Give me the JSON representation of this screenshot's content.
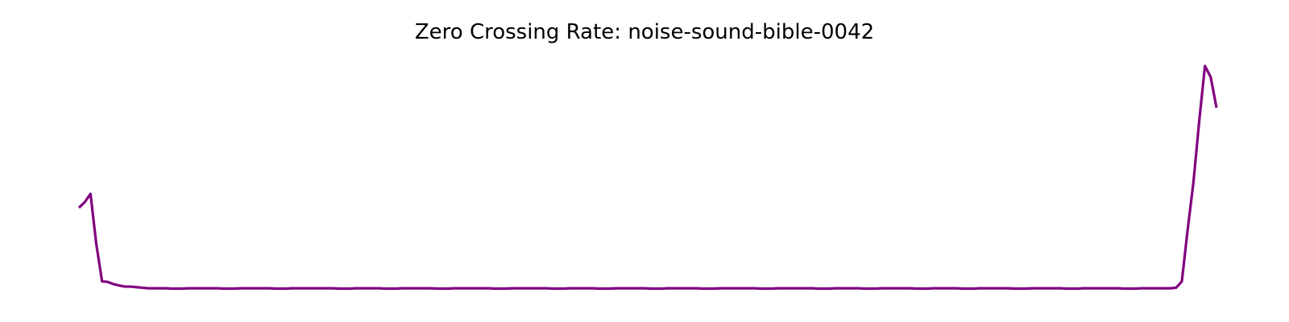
{
  "chart_data": {
    "type": "line",
    "title": "Zero Crossing Rate: noise-sound-bible-0042",
    "xlabel": "",
    "ylabel": "",
    "axes_visible": false,
    "grid": false,
    "line_color": "#800080",
    "series": [
      {
        "values": [
          0.33,
          0.35,
          0.38,
          0.2,
          0.065,
          0.063,
          0.055,
          0.05,
          0.046,
          0.046,
          0.044,
          0.042,
          0.04,
          0.04,
          0.04,
          0.04,
          0.039,
          0.039,
          0.039,
          0.04,
          0.04,
          0.04,
          0.04,
          0.04,
          0.04,
          0.039,
          0.039,
          0.039,
          0.04,
          0.04,
          0.04,
          0.04,
          0.04,
          0.04,
          0.039,
          0.039,
          0.039,
          0.04,
          0.04,
          0.04,
          0.04,
          0.04,
          0.04,
          0.04,
          0.04,
          0.039,
          0.039,
          0.039,
          0.04,
          0.04,
          0.04,
          0.04,
          0.04,
          0.039,
          0.039,
          0.039,
          0.04,
          0.04,
          0.04,
          0.04,
          0.04,
          0.04,
          0.039,
          0.039,
          0.039,
          0.04,
          0.04,
          0.04,
          0.04,
          0.04,
          0.04,
          0.04,
          0.039,
          0.039,
          0.039,
          0.04,
          0.04,
          0.04,
          0.04,
          0.04,
          0.04,
          0.04,
          0.039,
          0.039,
          0.039,
          0.04,
          0.04,
          0.04,
          0.04,
          0.04,
          0.039,
          0.039,
          0.039,
          0.04,
          0.04,
          0.04,
          0.04,
          0.04,
          0.04,
          0.039,
          0.039,
          0.039,
          0.04,
          0.04,
          0.04,
          0.04,
          0.04,
          0.04,
          0.039,
          0.039,
          0.039,
          0.04,
          0.04,
          0.04,
          0.04,
          0.04,
          0.04,
          0.04,
          0.039,
          0.039,
          0.039,
          0.04,
          0.04,
          0.04,
          0.04,
          0.04,
          0.04,
          0.04,
          0.039,
          0.039,
          0.039,
          0.04,
          0.04,
          0.04,
          0.04,
          0.04,
          0.039,
          0.039,
          0.039,
          0.04,
          0.04,
          0.04,
          0.04,
          0.04,
          0.04,
          0.039,
          0.039,
          0.039,
          0.04,
          0.04,
          0.04,
          0.04,
          0.04,
          0.039,
          0.039,
          0.039,
          0.04,
          0.04,
          0.04,
          0.04,
          0.04,
          0.04,
          0.039,
          0.039,
          0.039,
          0.04,
          0.04,
          0.04,
          0.04,
          0.04,
          0.04,
          0.039,
          0.039,
          0.039,
          0.04,
          0.04,
          0.04,
          0.04,
          0.04,
          0.04,
          0.04,
          0.039,
          0.039,
          0.039,
          0.04,
          0.04,
          0.04,
          0.04,
          0.04,
          0.04,
          0.042,
          0.065,
          0.25,
          0.42,
          0.64,
          0.84,
          0.8,
          0.69
        ]
      }
    ]
  }
}
